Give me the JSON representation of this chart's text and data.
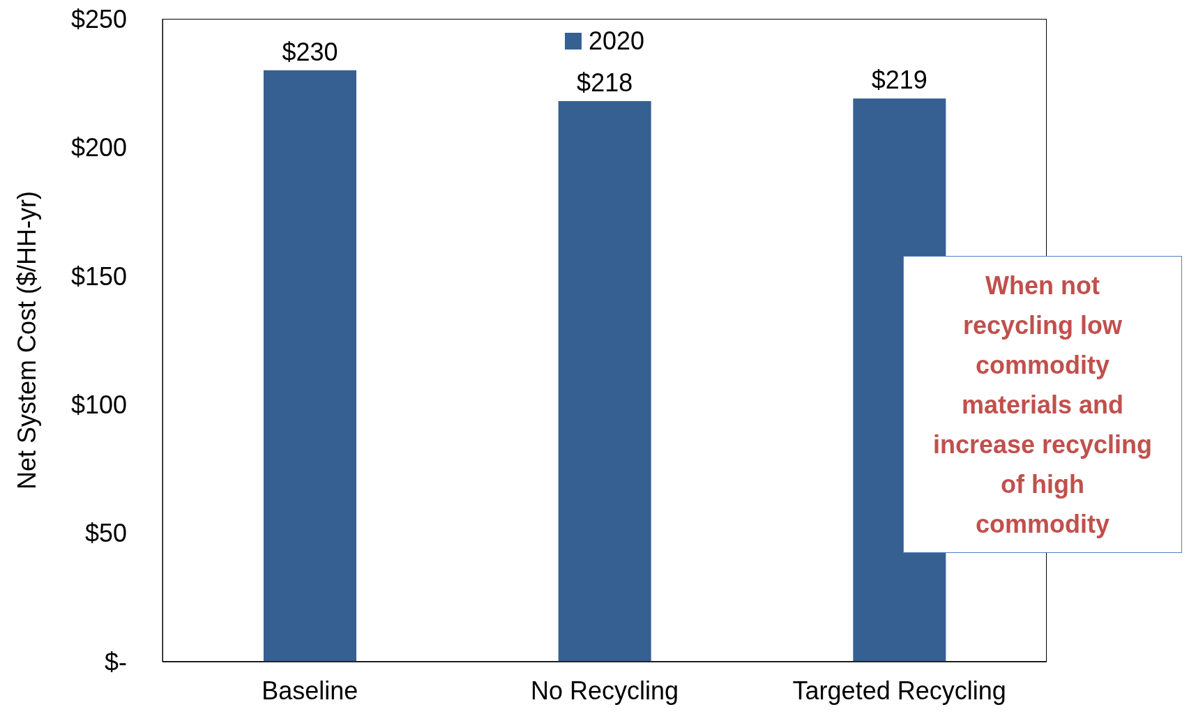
{
  "chart_data": {
    "type": "bar",
    "ylabel": "Net System Cost ($/HH-yr)",
    "categories": [
      "Baseline",
      "No Recycling",
      "Targeted Recycling"
    ],
    "series": [
      {
        "name": "2020",
        "color": "#376092",
        "values": [
          230,
          218,
          219
        ],
        "value_labels": [
          "$230",
          "$218",
          "$219"
        ]
      }
    ],
    "ylim": [
      0,
      250
    ],
    "yticks": [
      {
        "value": 0,
        "label": "$-"
      },
      {
        "value": 50,
        "label": "$50"
      },
      {
        "value": 100,
        "label": "$100"
      },
      {
        "value": 150,
        "label": "$150"
      },
      {
        "value": 200,
        "label": "$200"
      },
      {
        "value": 250,
        "label": "$250"
      }
    ],
    "legend": "top",
    "grid": false,
    "annotations": [
      "When not recycling low commodity materials and increase recycling of high commodity"
    ]
  }
}
